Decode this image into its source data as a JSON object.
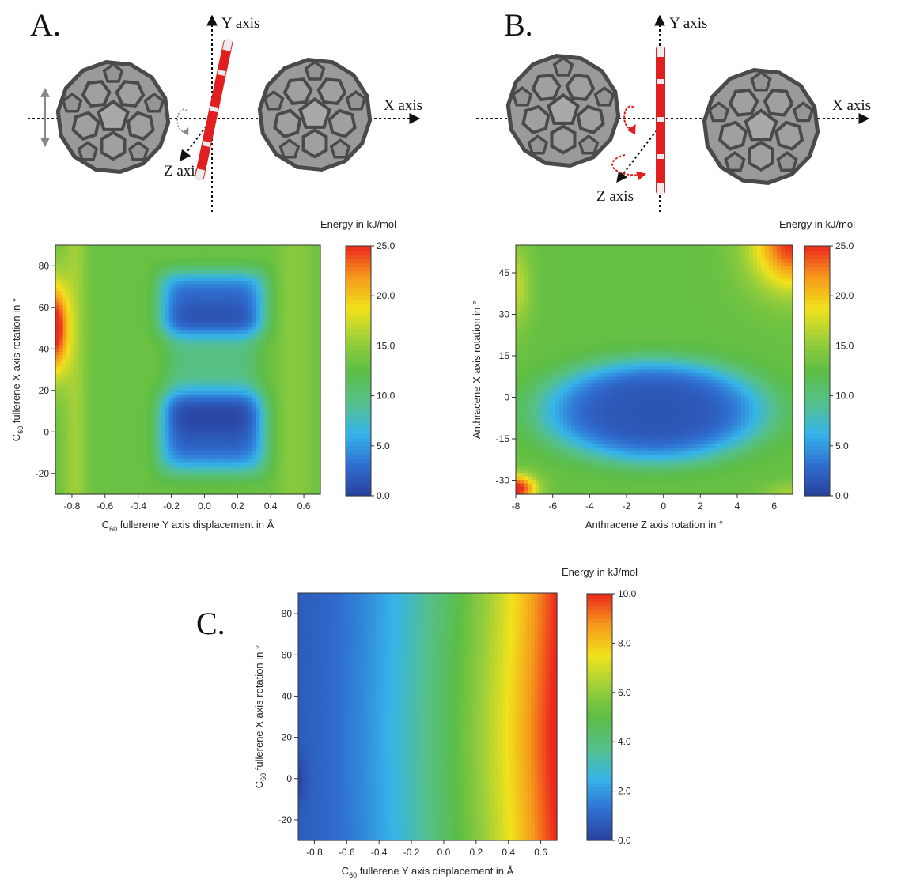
{
  "panels": {
    "a": {
      "letter": "A.",
      "y_axis": "Y axis",
      "x_axis": "X axis",
      "z_axis": "Z axis"
    },
    "b": {
      "letter": "B.",
      "y_axis": "Y axis",
      "x_axis": "X axis",
      "z_axis": "Z axis"
    },
    "c": {
      "letter": "C."
    }
  },
  "colors": {
    "fullerene_fill": "#9a9a9a",
    "fullerene_edge": "#4a4a4a",
    "anthracene": "#e02020",
    "colormap": [
      "#2a3f9c",
      "#2f6fd1",
      "#36b4ea",
      "#55c08a",
      "#5cbd45",
      "#9ccf3a",
      "#f2e21c",
      "#f59a1b",
      "#ec2a1d"
    ]
  },
  "chart_data": [
    {
      "type": "heatmap",
      "id": "A",
      "xlabel": "C60 fullerene Y axis displacement in Å",
      "ylabel": "C60 fullerene X axis rotation in °",
      "xlim": [
        -0.9,
        0.7
      ],
      "ylim": [
        -30,
        90
      ],
      "xticks": [
        -0.8,
        -0.6,
        -0.4,
        -0.2,
        0.0,
        0.2,
        0.4,
        0.6
      ],
      "xticklabels": [
        "-0.8",
        "-0.6",
        "-0.4",
        "-0.2",
        "0.0",
        "0.2",
        "0.4",
        "0.6"
      ],
      "yticks": [
        -20,
        0,
        20,
        40,
        60,
        80
      ],
      "yticklabels": [
        "-20",
        "0",
        "20",
        "40",
        "60",
        "80"
      ],
      "colorbar": {
        "title": "Energy in kJ/mol",
        "range": [
          0,
          25
        ],
        "ticks": [
          0,
          5,
          10,
          15,
          20,
          25
        ],
        "ticklabels": [
          "0.0",
          "5.0",
          "10.0",
          "15.0",
          "20.0",
          "25.0"
        ]
      },
      "features": [
        {
          "description": "energy minimum",
          "x": 0.05,
          "y": 0,
          "value": 2
        },
        {
          "description": "energy minimum",
          "x": 0.05,
          "y": 62,
          "value": 2
        },
        {
          "description": "energy maximum",
          "x": -0.9,
          "y": 50,
          "value": 23
        }
      ]
    },
    {
      "type": "heatmap",
      "id": "B",
      "xlabel": "Anthracene Z axis rotation in °",
      "ylabel": "Anthracene X axis rotation in °",
      "xlim": [
        -8,
        7
      ],
      "ylim": [
        -35,
        55
      ],
      "xticks": [
        -8,
        -6,
        -4,
        -2,
        0,
        2,
        4,
        6
      ],
      "xticklabels": [
        "-8",
        "-6",
        "-4",
        "-2",
        "0",
        "2",
        "4",
        "6"
      ],
      "yticks": [
        -30,
        -15,
        0,
        15,
        30,
        45
      ],
      "yticklabels": [
        "-30",
        "-15",
        "0",
        "15",
        "30",
        "45"
      ],
      "colorbar": {
        "title": "Energy in kJ/mol",
        "range": [
          0,
          25
        ],
        "ticks": [
          0,
          5,
          10,
          15,
          20,
          25
        ],
        "ticklabels": [
          "0.0",
          "5.0",
          "10.0",
          "15.0",
          "20.0",
          "25.0"
        ]
      },
      "features": [
        {
          "description": "energy minimum",
          "x": 0,
          "y": -5,
          "value": 2
        },
        {
          "description": "energy maximum",
          "x": -8,
          "y": -32,
          "value": 25
        },
        {
          "description": "energy maximum",
          "x": 7,
          "y": 55,
          "value": 25
        }
      ]
    },
    {
      "type": "heatmap",
      "id": "C",
      "xlabel": "C60 fullerene Y axis displacement in Å",
      "ylabel": "C60 fullerene X axis rotation in °",
      "xlim": [
        -0.9,
        0.7
      ],
      "ylim": [
        -30,
        90
      ],
      "xticks": [
        -0.8,
        -0.6,
        -0.4,
        -0.2,
        0.0,
        0.2,
        0.4,
        0.6
      ],
      "xticklabels": [
        "-0.8",
        "-0.6",
        "-0.4",
        "-0.2",
        "0.0",
        "0.2",
        "0.4",
        "0.6"
      ],
      "yticks": [
        -20,
        0,
        20,
        40,
        60,
        80
      ],
      "yticklabels": [
        "-20",
        "0",
        "20",
        "40",
        "60",
        "80"
      ],
      "colorbar": {
        "title": "Energy in kJ/mol",
        "range": [
          0,
          10
        ],
        "ticks": [
          0,
          2,
          4,
          6,
          8,
          10
        ],
        "ticklabels": [
          "0.0",
          "2.0",
          "4.0",
          "6.0",
          "8.0",
          "10.0"
        ]
      },
      "features": [
        {
          "description": "energy minimum",
          "x": -0.9,
          "y": 0,
          "value": 0.2
        },
        {
          "description": "energy maximum",
          "x": 0.7,
          "y": 30,
          "value": 10
        }
      ]
    }
  ]
}
